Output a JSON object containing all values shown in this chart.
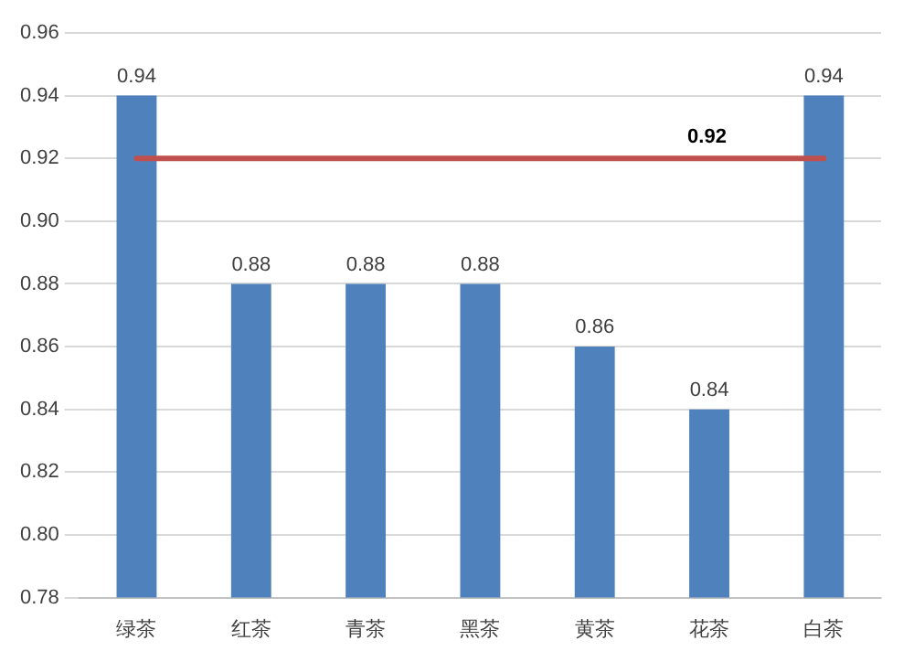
{
  "chart_data": {
    "type": "bar",
    "categories": [
      "绿茶",
      "红茶",
      "青茶",
      "黑茶",
      "黄茶",
      "花茶",
      "白茶"
    ],
    "values": [
      0.94,
      0.88,
      0.88,
      0.88,
      0.86,
      0.84,
      0.94
    ],
    "color": "#4f81bd",
    "data_labels": true,
    "ylim": [
      0.78,
      0.96
    ],
    "yticks": [
      0.78,
      {
        "value": 0.8,
        "label": "0.80"
      },
      0.82,
      0.84,
      0.86,
      0.88,
      {
        "value": 0.9,
        "label": "0.90"
      },
      0.92,
      0.94,
      0.96
    ],
    "grid": "y",
    "ref_lines": [
      {
        "axis": "y",
        "value": 0.92,
        "label": "0.92",
        "color": "#c0504d"
      }
    ]
  }
}
